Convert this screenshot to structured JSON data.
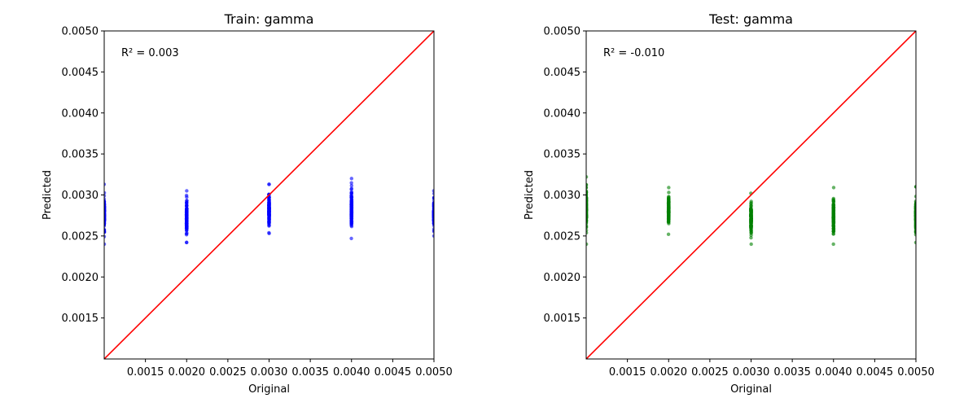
{
  "chart_data": [
    {
      "type": "scatter",
      "title": "Train: gamma",
      "xlabel": "Original",
      "ylabel": "Predicted",
      "xlim": [
        0.001,
        0.005
      ],
      "ylim": [
        0.001,
        0.005
      ],
      "xticks": [
        0.0015,
        0.002,
        0.0025,
        0.003,
        0.0035,
        0.004,
        0.0045,
        0.005
      ],
      "xtick_labels": [
        "0.0015",
        "0.0020",
        "0.0025",
        "0.0030",
        "0.0035",
        "0.0040",
        "0.0045",
        "0.0050"
      ],
      "yticks": [
        0.0015,
        0.002,
        0.0025,
        0.003,
        0.0035,
        0.004,
        0.0045,
        0.005
      ],
      "ytick_labels": [
        "0.0015",
        "0.0020",
        "0.0025",
        "0.0030",
        "0.0035",
        "0.0040",
        "0.0045",
        "0.0050"
      ],
      "annotation": "R² = 0.003",
      "point_color": "#0000ff",
      "reference_line": {
        "x": [
          0.001,
          0.005
        ],
        "y": [
          0.001,
          0.005
        ],
        "color": "#ff0000"
      },
      "clusters": [
        {
          "x": 0.001,
          "y_min": 0.0024,
          "y_max": 0.00313
        },
        {
          "x": 0.002,
          "y_min": 0.00242,
          "y_max": 0.00305
        },
        {
          "x": 0.003,
          "y_min": 0.00253,
          "y_max": 0.00313
        },
        {
          "x": 0.004,
          "y_min": 0.00247,
          "y_max": 0.0032
        },
        {
          "x": 0.005,
          "y_min": 0.0025,
          "y_max": 0.00305
        }
      ],
      "grid": false
    },
    {
      "type": "scatter",
      "title": "Test: gamma",
      "xlabel": "Original",
      "ylabel": "Predicted",
      "xlim": [
        0.001,
        0.005
      ],
      "ylim": [
        0.001,
        0.005
      ],
      "xticks": [
        0.0015,
        0.002,
        0.0025,
        0.003,
        0.0035,
        0.004,
        0.0045,
        0.005
      ],
      "xtick_labels": [
        "0.0015",
        "0.0020",
        "0.0025",
        "0.0030",
        "0.0035",
        "0.0040",
        "0.0045",
        "0.0050"
      ],
      "yticks": [
        0.0015,
        0.002,
        0.0025,
        0.003,
        0.0035,
        0.004,
        0.0045,
        0.005
      ],
      "ytick_labels": [
        "0.0015",
        "0.0020",
        "0.0025",
        "0.0030",
        "0.0035",
        "0.0040",
        "0.0045",
        "0.0050"
      ],
      "annotation": "R² = -0.010",
      "point_color": "#008000",
      "reference_line": {
        "x": [
          0.001,
          0.005
        ],
        "y": [
          0.001,
          0.005
        ],
        "color": "#ff0000"
      },
      "clusters": [
        {
          "x": 0.001,
          "y_min": 0.0024,
          "y_max": 0.00322
        },
        {
          "x": 0.002,
          "y_min": 0.00252,
          "y_max": 0.00309
        },
        {
          "x": 0.003,
          "y_min": 0.0024,
          "y_max": 0.00302
        },
        {
          "x": 0.004,
          "y_min": 0.0024,
          "y_max": 0.00309
        },
        {
          "x": 0.005,
          "y_min": 0.00242,
          "y_max": 0.0031
        }
      ],
      "grid": false
    }
  ]
}
